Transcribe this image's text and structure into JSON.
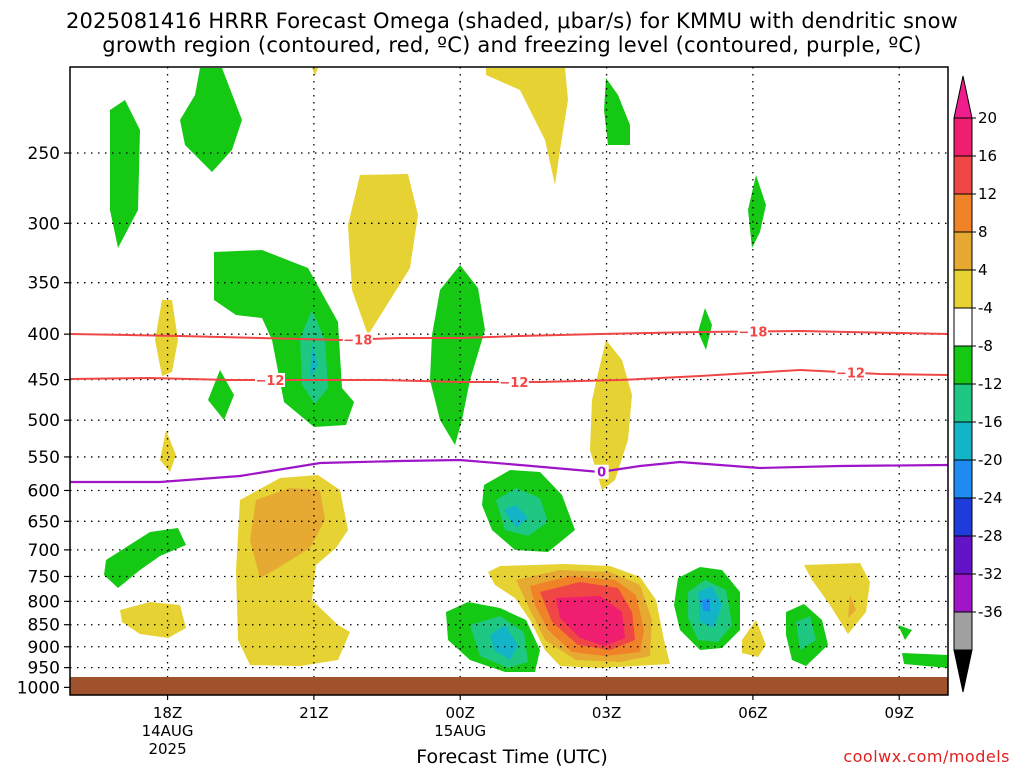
{
  "title_line1": "2025081416 HRRR Forecast Omega (shaded, μbar/s) for KMMU with dendritic snow",
  "title_line2": "growth region (contoured, red, ºC) and freezing level (contoured, purple, ºC)",
  "xaxis_title": "Forecast Time (UTC)",
  "credit": "coolwx.com/models",
  "chart_data": {
    "type": "heatmap",
    "y_axis": {
      "ticks": [
        250,
        300,
        350,
        400,
        450,
        500,
        550,
        600,
        650,
        700,
        750,
        800,
        850,
        900,
        950,
        1000
      ],
      "range": [
        200,
        1020
      ],
      "grid": "dotted"
    },
    "x_axis": {
      "range_hours": [
        16,
        10
      ],
      "ticks": [
        {
          "label": "18Z",
          "sub1": "14AUG",
          "sub2": "2025",
          "hour": 18
        },
        {
          "label": "21Z",
          "sub1": "",
          "sub2": "",
          "hour": 21
        },
        {
          "label": "00Z",
          "sub1": "15AUG",
          "sub2": "",
          "hour": 24
        },
        {
          "label": "03Z",
          "sub1": "",
          "sub2": "",
          "hour": 27
        },
        {
          "label": "06Z",
          "sub1": "",
          "sub2": "",
          "hour": 30
        },
        {
          "label": "09Z",
          "sub1": "",
          "sub2": "",
          "hour": 33
        }
      ]
    },
    "colorbar": {
      "labels": [
        "20",
        "16",
        "12",
        "8",
        "4",
        "-4",
        "-8",
        "-12",
        "-16",
        "-20",
        "-24",
        "-28",
        "-32",
        "-36"
      ],
      "colors": [
        "#f01e6e",
        "#f04646",
        "#f08228",
        "#e6aa32",
        "#e6d232",
        "#ffffff",
        "#14c814",
        "#1ec882",
        "#14b4c8",
        "#1e8cf0",
        "#1e3cdc",
        "#6414c8",
        "#a014c8",
        "#a0a0a0"
      ],
      "top_color": "#f01e8c",
      "bottom_color": "#000000"
    },
    "contours": [
      {
        "value": "-18",
        "color": "#f04646",
        "label_hours": [
          21.9,
          30.0
        ]
      },
      {
        "value": "-12",
        "color": "#f04646",
        "label_hours": [
          20.1,
          25.1,
          32.0
        ]
      },
      {
        "value": "0",
        "color": "#a014c8",
        "label_hours": [
          26.9
        ]
      }
    ],
    "ground_color": "#a0522d"
  }
}
